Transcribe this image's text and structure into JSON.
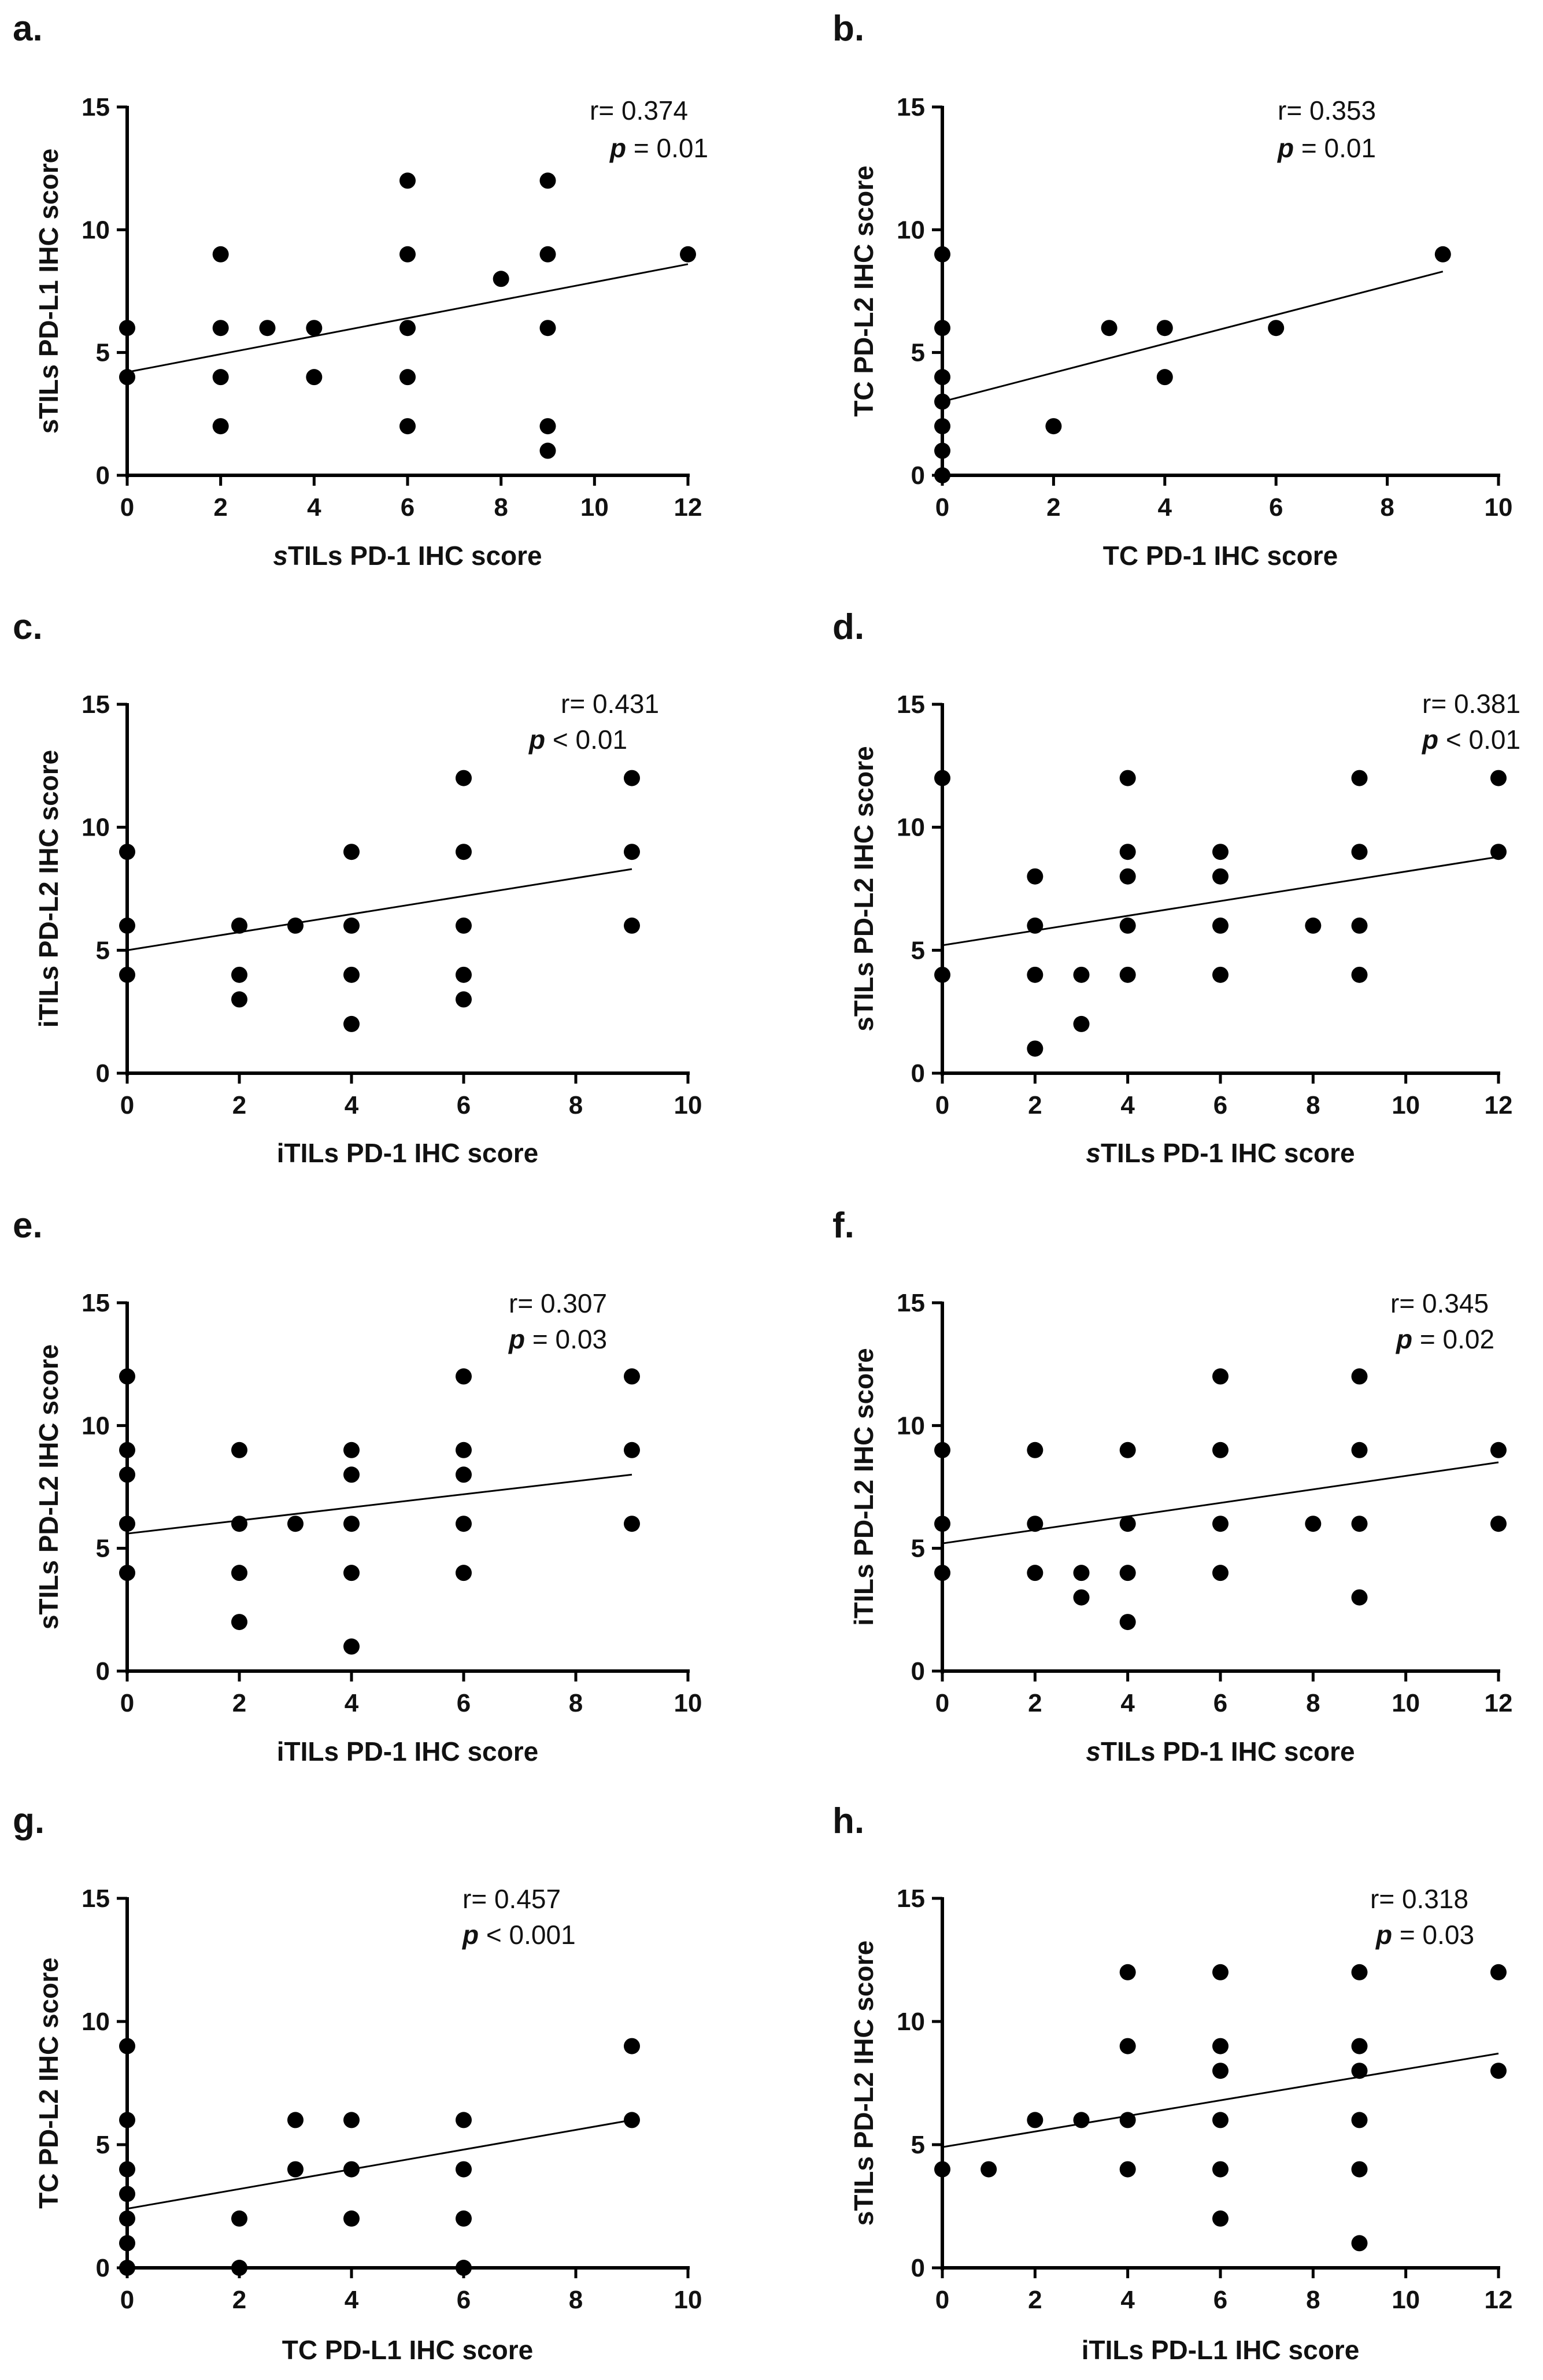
{
  "colors": {
    "ink": "#000000",
    "background": "#ffffff"
  },
  "chart_data": [
    {
      "panel": "a.",
      "type": "scatter",
      "xlabel_prefix": "s",
      "xlabel": "TILs PD-1 IHC score",
      "ylabel": "sTILs PD-L1 IHC score",
      "xlim": [
        0,
        12
      ],
      "ylim": [
        0,
        15
      ],
      "xticks": [
        0,
        2,
        4,
        6,
        8,
        10,
        12
      ],
      "yticks": [
        0,
        5,
        10,
        15
      ],
      "r_text": "r= 0.374",
      "p_symbol": "p",
      "p_text": "= 0.01",
      "points": [
        [
          0,
          4
        ],
        [
          0,
          6
        ],
        [
          2,
          2
        ],
        [
          2,
          4
        ],
        [
          2,
          6
        ],
        [
          2,
          9
        ],
        [
          3,
          6
        ],
        [
          4,
          4
        ],
        [
          4,
          6
        ],
        [
          6,
          2
        ],
        [
          6,
          4
        ],
        [
          6,
          6
        ],
        [
          6,
          9
        ],
        [
          6,
          12
        ],
        [
          8,
          8
        ],
        [
          9,
          1
        ],
        [
          9,
          2
        ],
        [
          9,
          6
        ],
        [
          9,
          9
        ],
        [
          9,
          12
        ],
        [
          12,
          9
        ]
      ],
      "fit": [
        [
          0,
          4.2
        ],
        [
          12,
          8.6
        ]
      ]
    },
    {
      "panel": "b.",
      "type": "scatter",
      "xlabel_prefix": "",
      "xlabel": "TC PD-1 IHC score",
      "ylabel": "TC PD-L2 IHC score",
      "xlim": [
        0,
        10
      ],
      "ylim": [
        0,
        15
      ],
      "xticks": [
        0,
        2,
        4,
        6,
        8,
        10
      ],
      "yticks": [
        0,
        5,
        10,
        15
      ],
      "r_text": "r= 0.353",
      "p_symbol": "p",
      "p_text": "= 0.01",
      "points": [
        [
          0,
          0
        ],
        [
          0,
          1
        ],
        [
          0,
          2
        ],
        [
          0,
          3
        ],
        [
          0,
          4
        ],
        [
          0,
          6
        ],
        [
          0,
          9
        ],
        [
          2,
          2
        ],
        [
          3,
          6
        ],
        [
          4,
          4
        ],
        [
          4,
          6
        ],
        [
          6,
          6
        ],
        [
          9,
          9
        ]
      ],
      "fit": [
        [
          0,
          3.0
        ],
        [
          9,
          8.3
        ]
      ]
    },
    {
      "panel": "c.",
      "type": "scatter",
      "xlabel_prefix": "",
      "xlabel": "iTILs PD-1 IHC score",
      "ylabel": "iTILs PD-L2 IHC score",
      "xlim": [
        0,
        10
      ],
      "ylim": [
        0,
        15
      ],
      "xticks": [
        0,
        2,
        4,
        6,
        8,
        10
      ],
      "yticks": [
        0,
        5,
        10,
        15
      ],
      "r_text": "r= 0.431",
      "p_symbol": "p",
      "p_text": "< 0.01",
      "points": [
        [
          0,
          4
        ],
        [
          0,
          6
        ],
        [
          0,
          9
        ],
        [
          2,
          3
        ],
        [
          2,
          4
        ],
        [
          2,
          6
        ],
        [
          3,
          6
        ],
        [
          4,
          2
        ],
        [
          4,
          4
        ],
        [
          4,
          6
        ],
        [
          4,
          9
        ],
        [
          6,
          3
        ],
        [
          6,
          4
        ],
        [
          6,
          6
        ],
        [
          6,
          9
        ],
        [
          6,
          12
        ],
        [
          9,
          6
        ],
        [
          9,
          9
        ],
        [
          9,
          12
        ]
      ],
      "fit": [
        [
          0,
          5.0
        ],
        [
          9,
          8.3
        ]
      ]
    },
    {
      "panel": "d.",
      "type": "scatter",
      "xlabel_prefix": "s",
      "xlabel": "TILs PD-1 IHC score",
      "ylabel": "sTILs PD-L2 IHC score",
      "xlim": [
        0,
        12
      ],
      "ylim": [
        0,
        15
      ],
      "xticks": [
        0,
        2,
        4,
        6,
        8,
        10,
        12
      ],
      "yticks": [
        0,
        5,
        10,
        15
      ],
      "r_text": "r= 0.381",
      "p_symbol": "p",
      "p_text": "< 0.01",
      "points": [
        [
          0,
          4
        ],
        [
          0,
          12
        ],
        [
          2,
          1
        ],
        [
          2,
          4
        ],
        [
          2,
          6
        ],
        [
          2,
          8
        ],
        [
          3,
          2
        ],
        [
          3,
          4
        ],
        [
          4,
          4
        ],
        [
          4,
          6
        ],
        [
          4,
          8
        ],
        [
          4,
          9
        ],
        [
          4,
          12
        ],
        [
          6,
          4
        ],
        [
          6,
          6
        ],
        [
          6,
          8
        ],
        [
          6,
          9
        ],
        [
          8,
          6
        ],
        [
          9,
          4
        ],
        [
          9,
          6
        ],
        [
          9,
          9
        ],
        [
          9,
          12
        ],
        [
          12,
          9
        ],
        [
          12,
          12
        ]
      ],
      "fit": [
        [
          0,
          5.2
        ],
        [
          12,
          8.8
        ]
      ]
    },
    {
      "panel": "e.",
      "type": "scatter",
      "xlabel_prefix": "",
      "xlabel": "iTILs PD-1 IHC score",
      "ylabel": "sTILs PD-L2 IHC score",
      "xlim": [
        0,
        10
      ],
      "ylim": [
        0,
        15
      ],
      "xticks": [
        0,
        2,
        4,
        6,
        8,
        10
      ],
      "yticks": [
        0,
        5,
        10,
        15
      ],
      "r_text": "r= 0.307",
      "p_symbol": "p",
      "p_text": " = 0.03",
      "points": [
        [
          0,
          4
        ],
        [
          0,
          6
        ],
        [
          0,
          8
        ],
        [
          0,
          9
        ],
        [
          0,
          12
        ],
        [
          2,
          2
        ],
        [
          2,
          4
        ],
        [
          2,
          6
        ],
        [
          2,
          9
        ],
        [
          3,
          6
        ],
        [
          4,
          1
        ],
        [
          4,
          4
        ],
        [
          4,
          6
        ],
        [
          4,
          8
        ],
        [
          4,
          9
        ],
        [
          6,
          4
        ],
        [
          6,
          6
        ],
        [
          6,
          8
        ],
        [
          6,
          9
        ],
        [
          6,
          12
        ],
        [
          9,
          6
        ],
        [
          9,
          9
        ],
        [
          9,
          12
        ]
      ],
      "fit": [
        [
          0,
          5.6
        ],
        [
          9,
          8.0
        ]
      ]
    },
    {
      "panel": "f.",
      "type": "scatter",
      "xlabel_prefix": "s",
      "xlabel": "TILs PD-1 IHC score",
      "ylabel": "iTILs PD-L2 IHC score",
      "xlim": [
        0,
        12
      ],
      "ylim": [
        0,
        15
      ],
      "xticks": [
        0,
        2,
        4,
        6,
        8,
        10,
        12
      ],
      "yticks": [
        0,
        5,
        10,
        15
      ],
      "r_text": "r= 0.345",
      "p_symbol": "p",
      "p_text": "= 0.02",
      "points": [
        [
          0,
          4
        ],
        [
          0,
          6
        ],
        [
          0,
          9
        ],
        [
          2,
          4
        ],
        [
          2,
          6
        ],
        [
          2,
          9
        ],
        [
          3,
          3
        ],
        [
          3,
          4
        ],
        [
          4,
          2
        ],
        [
          4,
          4
        ],
        [
          4,
          6
        ],
        [
          4,
          9
        ],
        [
          6,
          4
        ],
        [
          6,
          6
        ],
        [
          6,
          9
        ],
        [
          6,
          12
        ],
        [
          8,
          6
        ],
        [
          9,
          3
        ],
        [
          9,
          6
        ],
        [
          9,
          9
        ],
        [
          9,
          12
        ],
        [
          12,
          6
        ],
        [
          12,
          9
        ]
      ],
      "fit": [
        [
          0,
          5.2
        ],
        [
          12,
          8.5
        ]
      ]
    },
    {
      "panel": "g.",
      "type": "scatter",
      "xlabel_prefix": "",
      "xlabel": "TC PD-L1 IHC score",
      "ylabel": "TC PD-L2 IHC score",
      "xlim": [
        0,
        10
      ],
      "ylim": [
        0,
        15
      ],
      "xticks": [
        0,
        2,
        4,
        6,
        8,
        10
      ],
      "yticks": [
        0,
        5,
        10,
        15
      ],
      "r_text": "r= 0.457",
      "p_symbol": "p",
      "p_text": "< 0.001",
      "points": [
        [
          0,
          0
        ],
        [
          0,
          1
        ],
        [
          0,
          2
        ],
        [
          0,
          3
        ],
        [
          0,
          4
        ],
        [
          0,
          6
        ],
        [
          0,
          9
        ],
        [
          2,
          0
        ],
        [
          2,
          2
        ],
        [
          3,
          4
        ],
        [
          3,
          6
        ],
        [
          4,
          2
        ],
        [
          4,
          4
        ],
        [
          4,
          6
        ],
        [
          6,
          0
        ],
        [
          6,
          2
        ],
        [
          6,
          4
        ],
        [
          6,
          6
        ],
        [
          9,
          6
        ],
        [
          9,
          9
        ]
      ],
      "fit": [
        [
          0,
          2.4
        ],
        [
          9,
          6.0
        ]
      ]
    },
    {
      "panel": "h.",
      "type": "scatter",
      "xlabel_prefix": "",
      "xlabel": "iTILs PD-L1 IHC score",
      "ylabel": "sTILs PD-L2 IHC score",
      "xlim": [
        0,
        12
      ],
      "ylim": [
        0,
        15
      ],
      "xticks": [
        0,
        2,
        4,
        6,
        8,
        10,
        12
      ],
      "yticks": [
        0,
        5,
        10,
        15
      ],
      "r_text": "r= 0.318",
      "p_symbol": "p",
      "p_text": "= 0.03",
      "points": [
        [
          0,
          4
        ],
        [
          1,
          4
        ],
        [
          2,
          6
        ],
        [
          3,
          6
        ],
        [
          4,
          4
        ],
        [
          4,
          6
        ],
        [
          4,
          9
        ],
        [
          4,
          12
        ],
        [
          6,
          2
        ],
        [
          6,
          4
        ],
        [
          6,
          6
        ],
        [
          6,
          8
        ],
        [
          6,
          9
        ],
        [
          6,
          12
        ],
        [
          9,
          1
        ],
        [
          9,
          4
        ],
        [
          9,
          6
        ],
        [
          9,
          8
        ],
        [
          9,
          9
        ],
        [
          9,
          12
        ],
        [
          12,
          8
        ],
        [
          12,
          12
        ]
      ],
      "fit": [
        [
          0,
          4.9
        ],
        [
          12,
          8.7
        ]
      ]
    }
  ]
}
